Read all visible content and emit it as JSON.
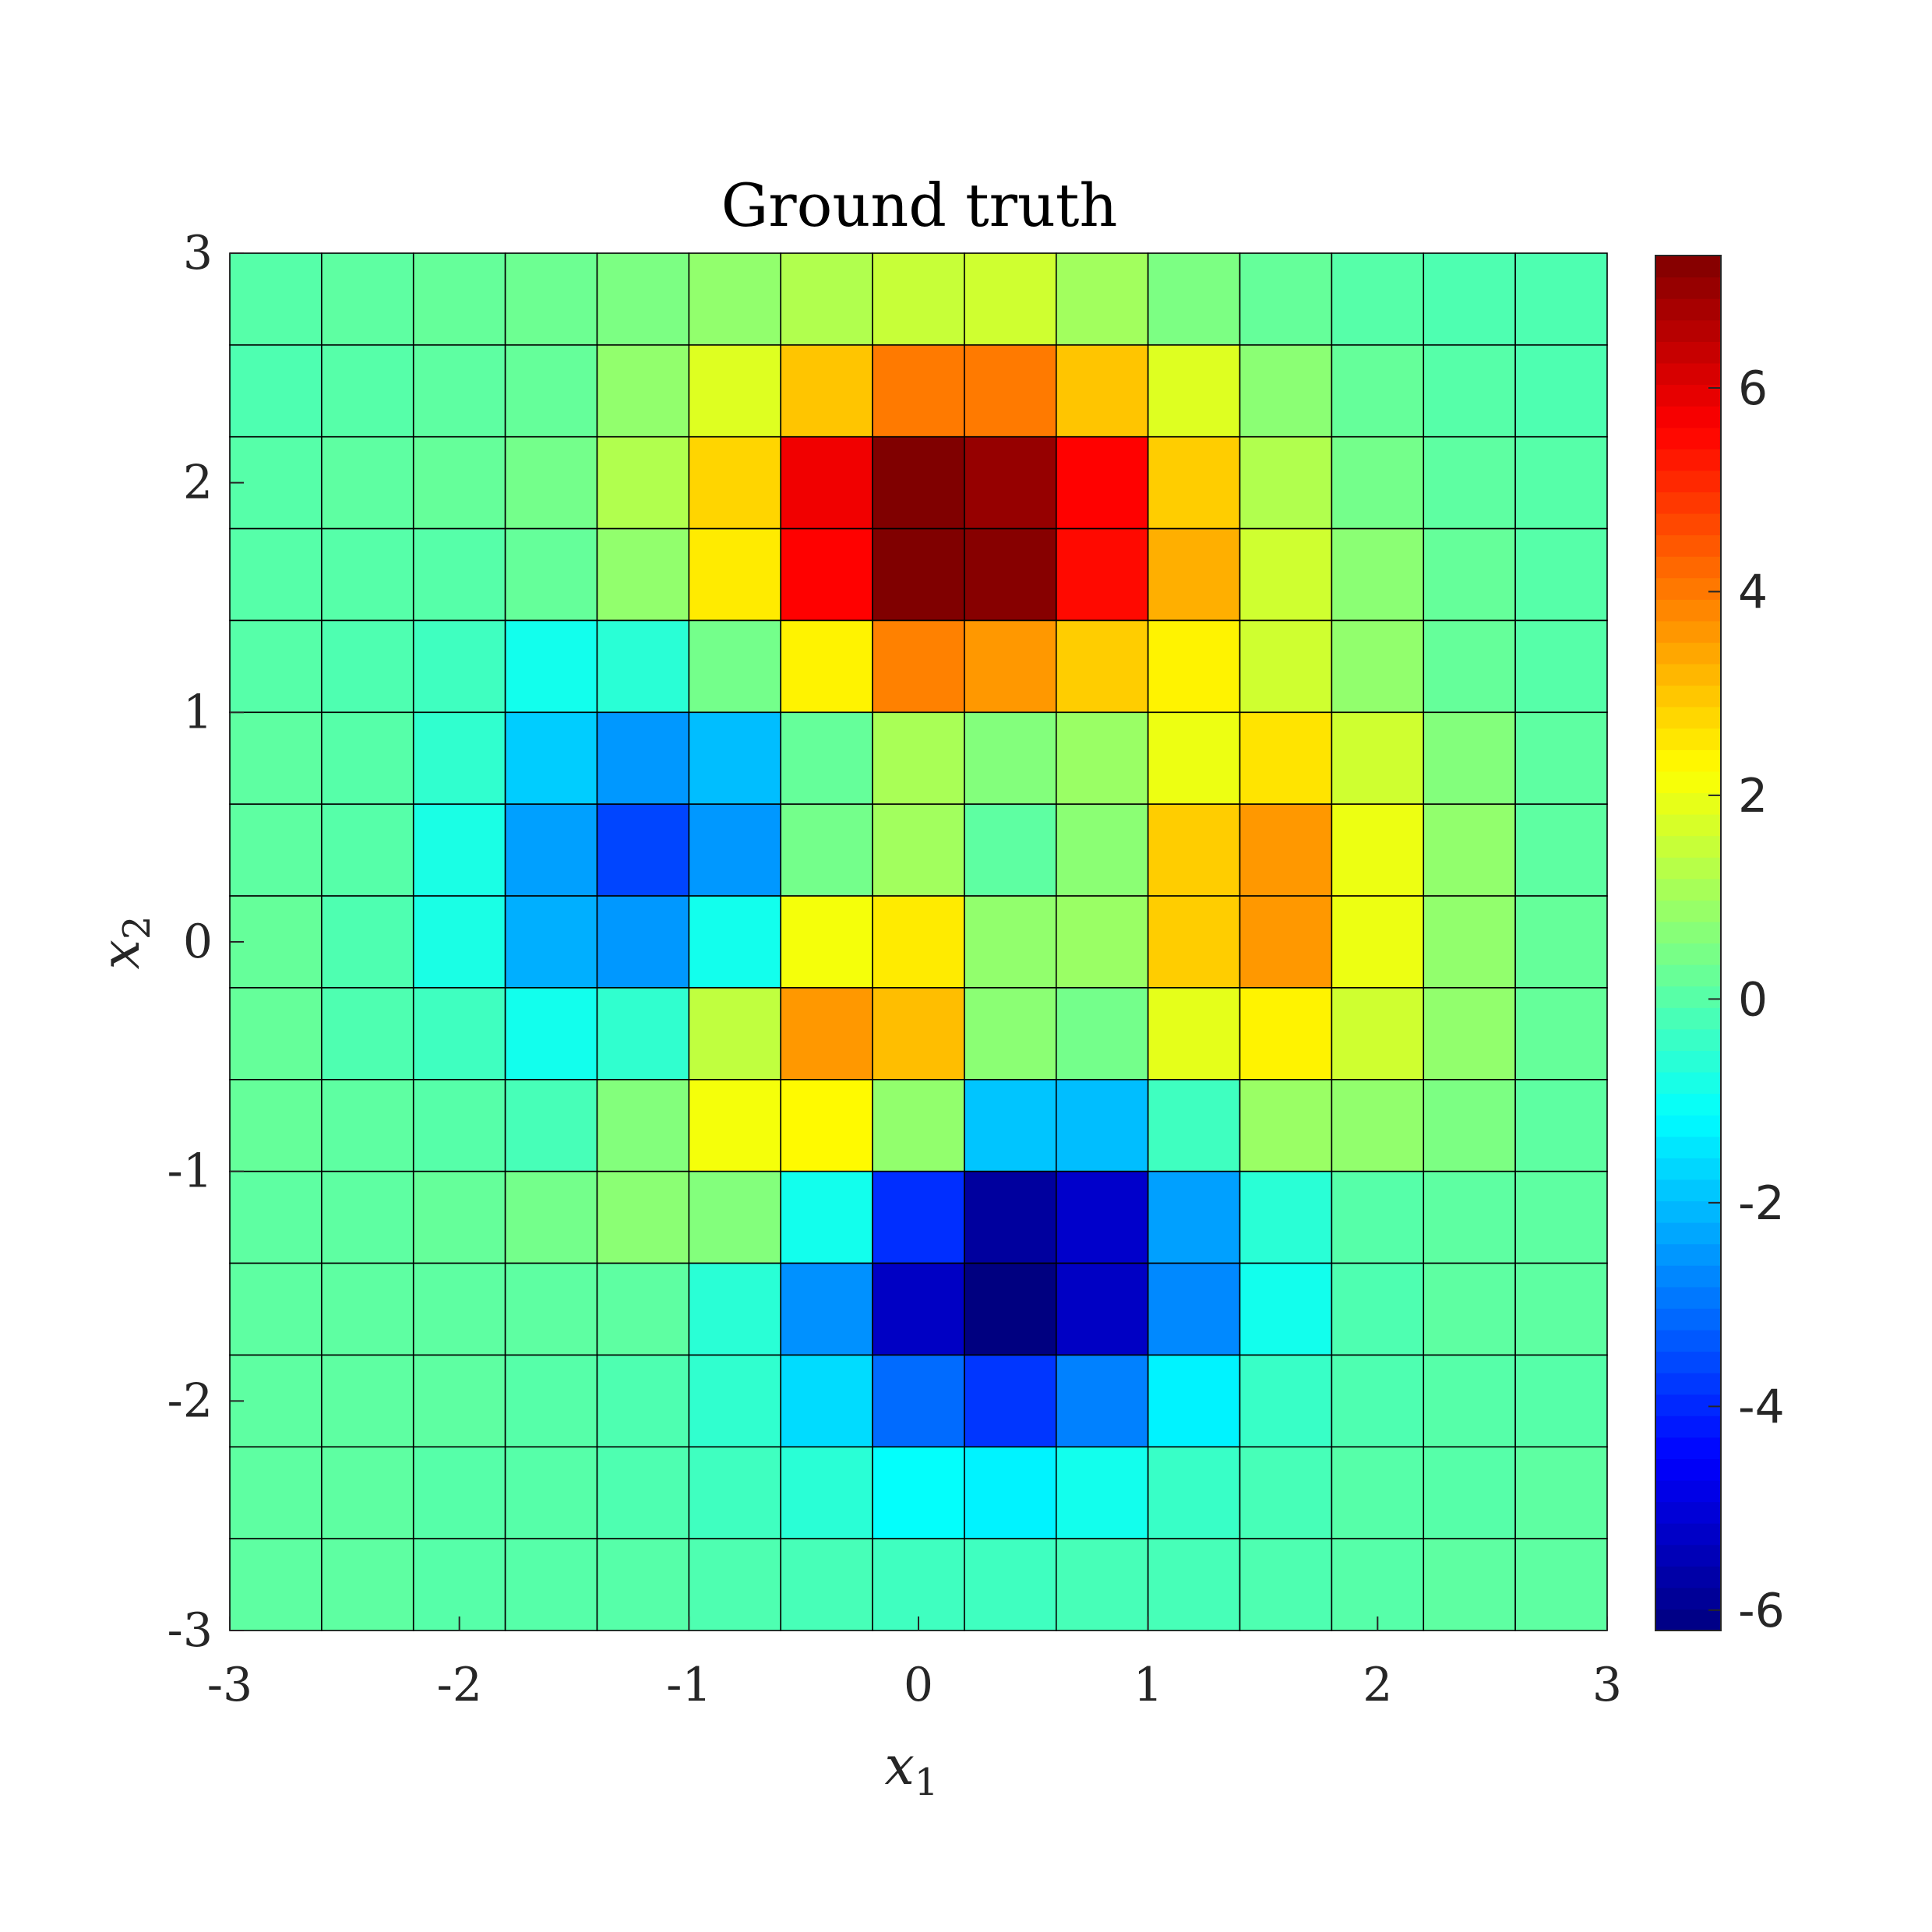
{
  "chart_data": {
    "type": "heatmap",
    "title": "Ground truth",
    "xlabel": "x",
    "xlabel_sub": "1",
    "ylabel": "x",
    "ylabel_sub": "2",
    "xlim": [
      -3,
      3
    ],
    "ylim": [
      -3,
      3
    ],
    "x_ticks": [
      "-3",
      "-2",
      "-1",
      "0",
      "1",
      "2",
      "3"
    ],
    "y_ticks": [
      "-3",
      "-2",
      "-1",
      "0",
      "1",
      "2",
      "3"
    ],
    "colorbar_ticks": [
      "-6",
      "-4",
      "-2",
      "0",
      "2",
      "4",
      "6"
    ],
    "colorbar_range": [
      -6.2,
      7.3
    ],
    "colormap": "jet",
    "grid": true,
    "rows": 15,
    "cols": 15,
    "values_top_to_bottom": [
      [
        0.0,
        0.1,
        0.2,
        0.3,
        0.5,
        0.8,
        1.2,
        1.5,
        1.6,
        1.0,
        0.5,
        0.2,
        0.0,
        -0.1,
        -0.1
      ],
      [
        -0.1,
        0.0,
        0.1,
        0.2,
        0.8,
        1.8,
        3.0,
        4.0,
        4.0,
        3.0,
        1.8,
        0.7,
        0.2,
        0.0,
        -0.1
      ],
      [
        0.0,
        0.1,
        0.2,
        0.4,
        1.2,
        2.8,
        5.8,
        7.3,
        7.0,
        5.6,
        2.9,
        1.2,
        0.4,
        0.1,
        0.0
      ],
      [
        0.0,
        0.0,
        0.0,
        0.2,
        0.8,
        2.5,
        5.6,
        7.3,
        7.2,
        5.5,
        3.3,
        1.6,
        0.7,
        0.2,
        0.0
      ],
      [
        0.0,
        -0.1,
        -0.3,
        -0.9,
        -0.6,
        0.4,
        2.4,
        3.9,
        3.6,
        2.9,
        2.4,
        1.6,
        0.8,
        0.2,
        0.0
      ],
      [
        0.1,
        0.0,
        -0.5,
        -1.8,
        -2.5,
        -2.0,
        0.2,
        1.1,
        0.6,
        0.9,
        2.0,
        2.6,
        1.6,
        0.6,
        0.1
      ],
      [
        0.1,
        0.0,
        -0.8,
        -2.4,
        -3.6,
        -2.5,
        0.4,
        1.0,
        0.1,
        0.7,
        2.9,
        3.6,
        2.0,
        0.8,
        0.1
      ],
      [
        0.2,
        -0.1,
        -0.8,
        -2.2,
        -2.5,
        -0.9,
        2.1,
        2.5,
        0.8,
        0.9,
        2.9,
        3.6,
        2.0,
        0.8,
        0.2
      ],
      [
        0.2,
        -0.1,
        -0.3,
        -0.9,
        -0.5,
        1.4,
        3.6,
        3.1,
        0.7,
        0.4,
        1.9,
        2.4,
        1.6,
        0.8,
        0.2
      ],
      [
        0.2,
        0.1,
        0.0,
        -0.2,
        0.6,
        2.1,
        2.3,
        0.8,
        -1.9,
        -2.0,
        -0.3,
        0.9,
        0.8,
        0.5,
        0.1
      ],
      [
        0.1,
        0.1,
        0.2,
        0.4,
        0.7,
        0.6,
        -0.9,
        -3.9,
        -5.8,
        -5.2,
        -2.4,
        -0.6,
        0.0,
        0.1,
        0.1
      ],
      [
        0.1,
        0.1,
        0.1,
        0.1,
        0.1,
        -0.6,
        -2.6,
        -5.3,
        -6.2,
        -5.3,
        -2.7,
        -0.9,
        -0.1,
        0.1,
        0.1
      ],
      [
        0.1,
        0.1,
        0.1,
        0.0,
        -0.1,
        -0.5,
        -1.6,
        -3.1,
        -3.8,
        -2.8,
        -1.3,
        -0.4,
        -0.1,
        0.0,
        0.0
      ],
      [
        0.1,
        0.1,
        0.0,
        0.0,
        -0.1,
        -0.3,
        -0.6,
        -1.1,
        -1.3,
        -0.9,
        -0.4,
        -0.2,
        0.0,
        0.0,
        0.1
      ],
      [
        0.1,
        0.1,
        0.0,
        0.0,
        0.0,
        -0.1,
        -0.2,
        -0.3,
        -0.3,
        -0.2,
        -0.2,
        -0.1,
        0.0,
        0.1,
        0.1
      ]
    ]
  }
}
